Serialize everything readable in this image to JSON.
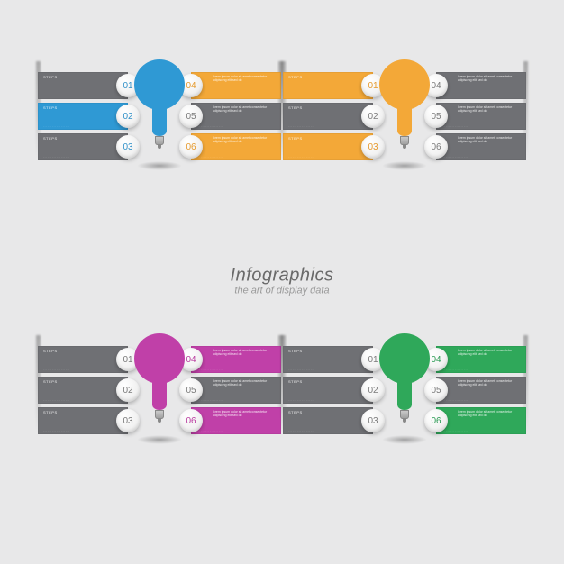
{
  "title": {
    "main": "Infographics",
    "sub": "the art of display data"
  },
  "step_label": "STEPS",
  "desc_text": "lorem ipsum dolor sit amet consectetur adipiscing elit sed do",
  "bottom_text": ". . . . . . . . . . . . . . . . . .",
  "colors": {
    "grey": "#6f7074",
    "blue": "#2f99d4",
    "orange": "#f3a838",
    "magenta": "#c040a8",
    "green": "#2fa85a",
    "badge_blue": "#3090c8",
    "badge_orange": "#e59a2e",
    "badge_magenta": "#b83a9e",
    "badge_green": "#2a9a52",
    "badge_grey": "#7a7a7a"
  },
  "quadrants": [
    {
      "pos": "q-tl",
      "bulb": "#2f99d4",
      "left": [
        {
          "n": "01",
          "c": "grey",
          "num": "badge_blue"
        },
        {
          "n": "02",
          "c": "blue",
          "num": "badge_blue"
        },
        {
          "n": "03",
          "c": "grey",
          "num": "badge_blue"
        }
      ],
      "right": [
        {
          "n": "04",
          "c": "orange",
          "num": "badge_orange"
        },
        {
          "n": "05",
          "c": "grey",
          "num": "badge_grey"
        },
        {
          "n": "06",
          "c": "orange",
          "num": "badge_orange"
        }
      ]
    },
    {
      "pos": "q-tr",
      "bulb": "#f3a838",
      "left": [
        {
          "n": "01",
          "c": "orange",
          "num": "badge_orange"
        },
        {
          "n": "02",
          "c": "grey",
          "num": "badge_grey"
        },
        {
          "n": "03",
          "c": "orange",
          "num": "badge_orange"
        }
      ],
      "right": [
        {
          "n": "04",
          "c": "grey",
          "num": "badge_grey"
        },
        {
          "n": "05",
          "c": "grey",
          "num": "badge_grey"
        },
        {
          "n": "06",
          "c": "grey",
          "num": "badge_grey"
        }
      ]
    },
    {
      "pos": "q-bl",
      "bulb": "#c040a8",
      "left": [
        {
          "n": "01",
          "c": "grey",
          "num": "badge_grey"
        },
        {
          "n": "02",
          "c": "grey",
          "num": "badge_grey"
        },
        {
          "n": "03",
          "c": "grey",
          "num": "badge_grey"
        }
      ],
      "right": [
        {
          "n": "04",
          "c": "magenta",
          "num": "badge_magenta"
        },
        {
          "n": "05",
          "c": "grey",
          "num": "badge_grey"
        },
        {
          "n": "06",
          "c": "magenta",
          "num": "badge_magenta"
        }
      ]
    },
    {
      "pos": "q-br",
      "bulb": "#2fa85a",
      "left": [
        {
          "n": "01",
          "c": "grey",
          "num": "badge_grey"
        },
        {
          "n": "02",
          "c": "grey",
          "num": "badge_grey"
        },
        {
          "n": "03",
          "c": "grey",
          "num": "badge_grey"
        }
      ],
      "right": [
        {
          "n": "04",
          "c": "green",
          "num": "badge_green"
        },
        {
          "n": "05",
          "c": "grey",
          "num": "badge_grey"
        },
        {
          "n": "06",
          "c": "green",
          "num": "badge_green"
        }
      ]
    }
  ]
}
